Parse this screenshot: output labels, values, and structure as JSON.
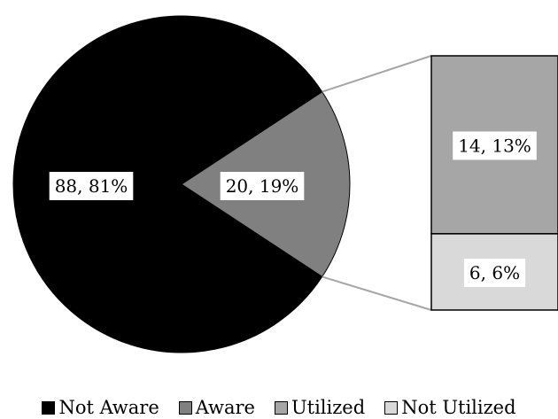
{
  "chart_data": {
    "type": "pie",
    "variant": "bar-of-pie",
    "title": "",
    "pie": {
      "slices": [
        {
          "name": "Not Aware",
          "value": 88,
          "percent": 81,
          "label": "88, 81%",
          "color": "#000000"
        },
        {
          "name": "Aware",
          "value": 20,
          "percent": 19,
          "label": "20, 19%",
          "color": "#808080"
        }
      ]
    },
    "bar": {
      "breakdown_of": "Aware",
      "segments": [
        {
          "name": "Utilized",
          "value": 14,
          "percent": 13,
          "label": "14, 13%",
          "color": "#a6a6a6"
        },
        {
          "name": "Not Utilized",
          "value": 6,
          "percent": 6,
          "label": "6, 6%",
          "color": "#d9d9d9"
        }
      ]
    },
    "legend": {
      "placement": "bottom",
      "entries": [
        {
          "name": "Not Aware",
          "color": "#000000"
        },
        {
          "name": "Aware",
          "color": "#808080"
        },
        {
          "name": "Utilized",
          "color": "#a6a6a6"
        },
        {
          "name": "Not Utilized",
          "color": "#d9d9d9"
        }
      ]
    }
  }
}
